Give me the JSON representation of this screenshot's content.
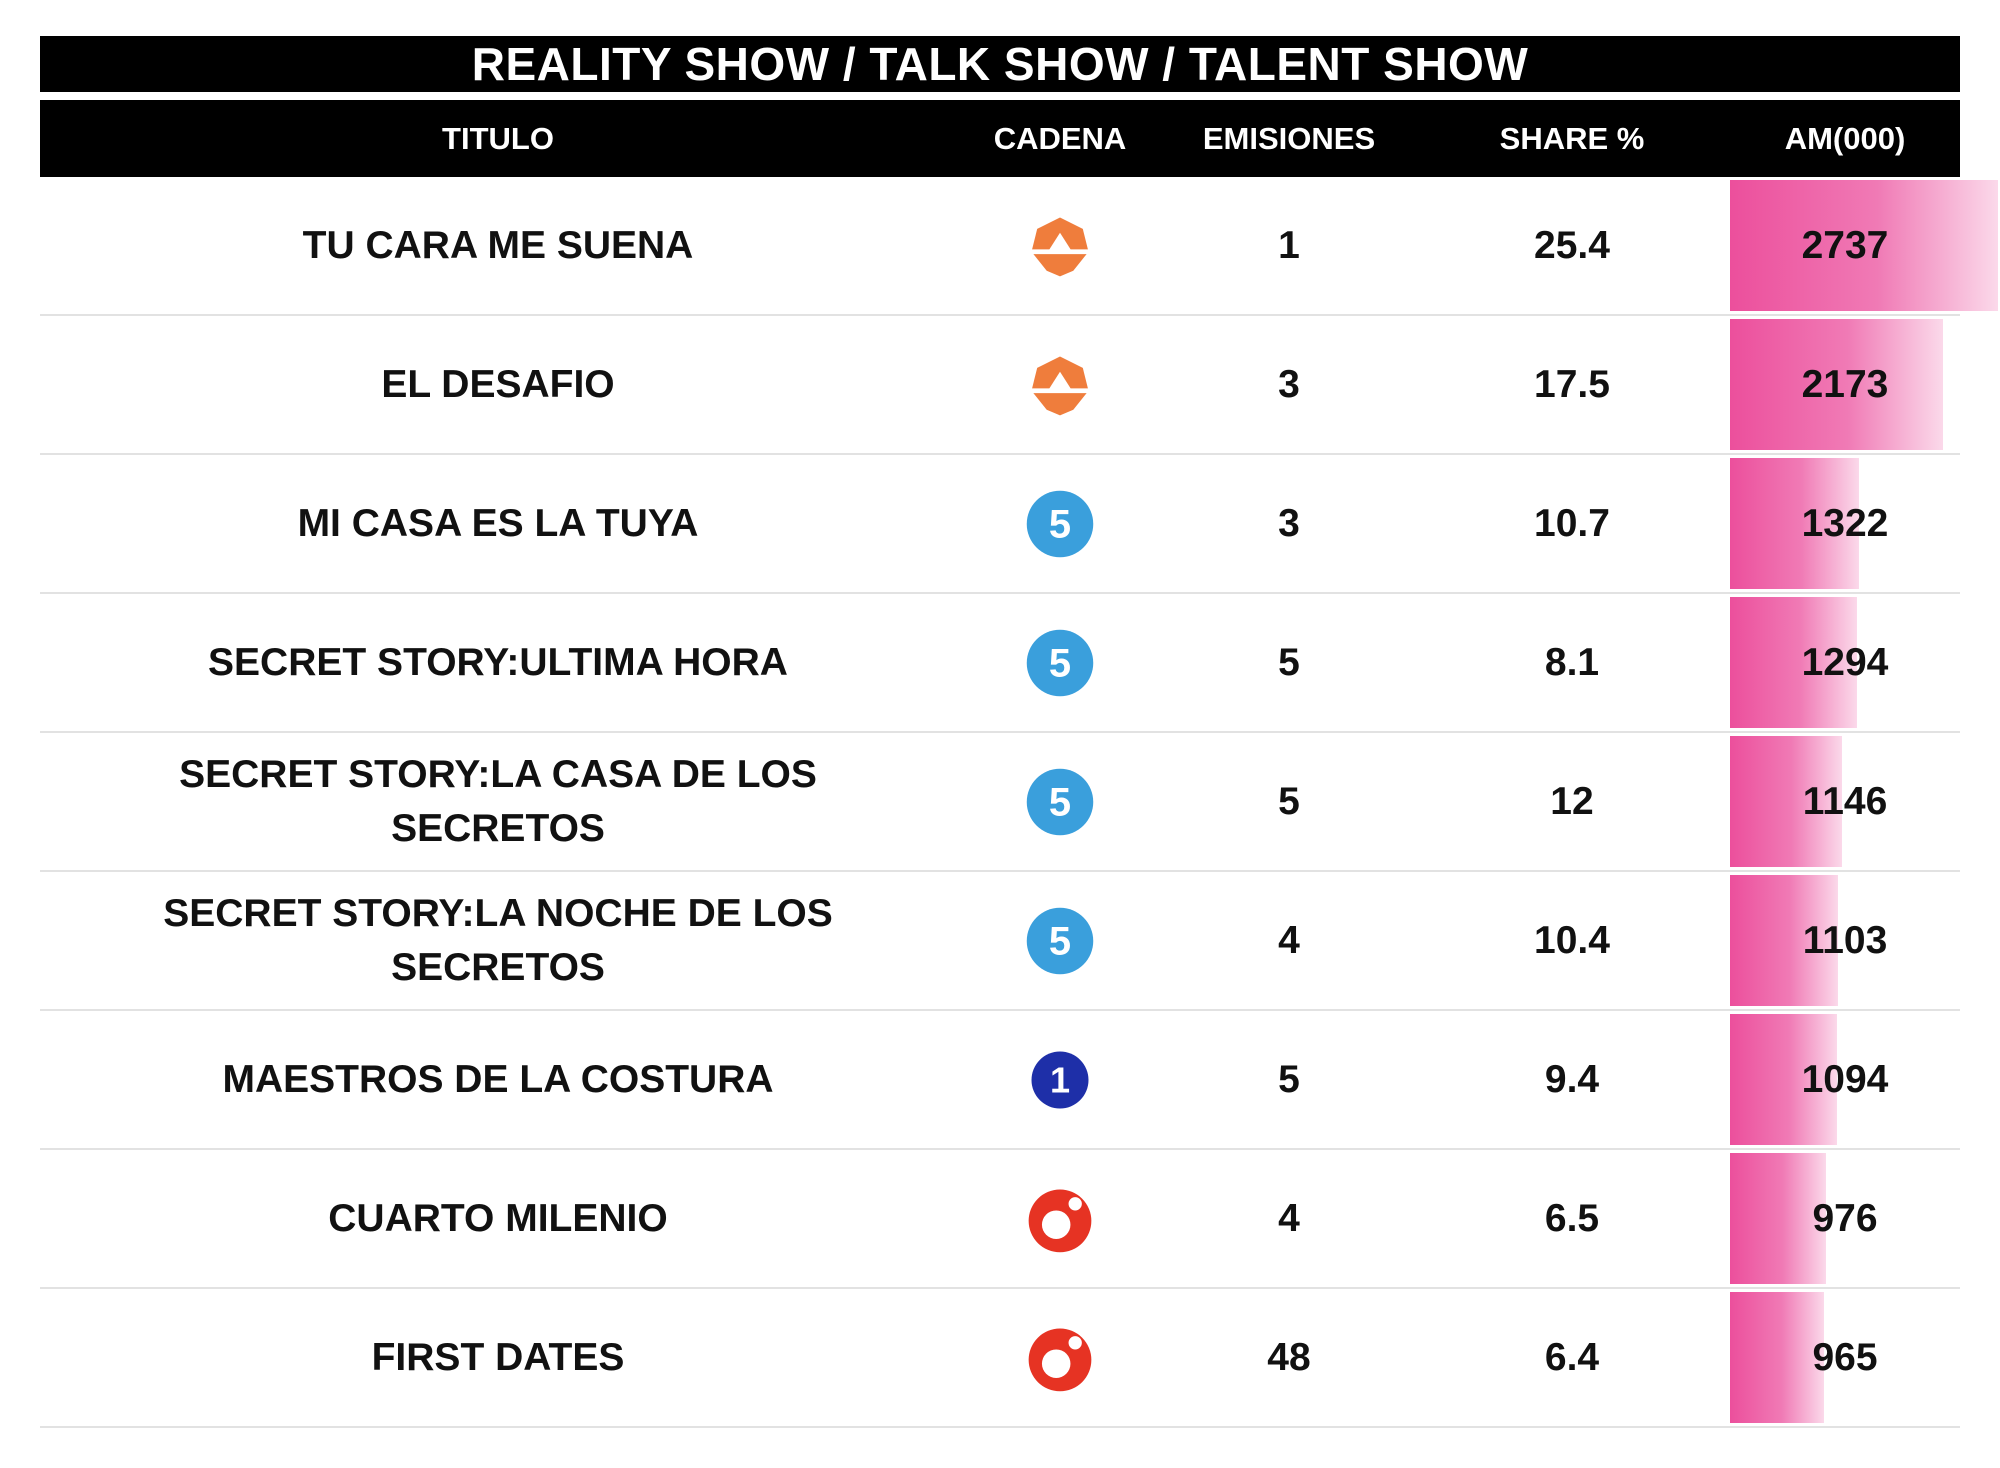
{
  "header": {
    "title": "REALITY SHOW / TALK SHOW / TALENT SHOW"
  },
  "columns": {
    "title": "TITULO",
    "channel": "CADENA",
    "emissions": "EMISIONES",
    "share": "SHARE %",
    "am": "AM(000)"
  },
  "colors": {
    "bar_start": "#ec4f9c",
    "bar_end": "#fbd9ea",
    "antena3": "#ef7d3c",
    "telecinco": "#3a9fdc",
    "la1": "#1e2fa8",
    "cuatro": "#e63323"
  },
  "am_max": 2737,
  "rows": [
    {
      "title": "TU CARA ME SUENA",
      "channel_icon": "antena3-logo-icon",
      "emissions": "1",
      "share": "25.4",
      "am": "2737",
      "am_value": 2737
    },
    {
      "title": "EL DESAFIO",
      "channel_icon": "antena3-logo-icon",
      "emissions": "3",
      "share": "17.5",
      "am": "2173",
      "am_value": 2173
    },
    {
      "title": "MI CASA ES LA TUYA",
      "channel_icon": "telecinco-logo-icon",
      "emissions": "3",
      "share": "10.7",
      "am": "1322",
      "am_value": 1322
    },
    {
      "title": "SECRET STORY:ULTIMA HORA",
      "channel_icon": "telecinco-logo-icon",
      "emissions": "5",
      "share": "8.1",
      "am": "1294",
      "am_value": 1294
    },
    {
      "title": "SECRET STORY:LA CASA DE LOS SECRETOS",
      "channel_icon": "telecinco-logo-icon",
      "emissions": "5",
      "share": "12",
      "am": "1146",
      "am_value": 1146
    },
    {
      "title": "SECRET STORY:LA NOCHE DE LOS SECRETOS",
      "channel_icon": "telecinco-logo-icon",
      "emissions": "4",
      "share": "10.4",
      "am": "1103",
      "am_value": 1103
    },
    {
      "title": "MAESTROS DE LA COSTURA",
      "channel_icon": "la1-logo-icon",
      "emissions": "5",
      "share": "9.4",
      "am": "1094",
      "am_value": 1094
    },
    {
      "title": "CUARTO MILENIO",
      "channel_icon": "cuatro-logo-icon",
      "emissions": "4",
      "share": "6.5",
      "am": "976",
      "am_value": 976
    },
    {
      "title": "FIRST DATES",
      "channel_icon": "cuatro-logo-icon",
      "emissions": "48",
      "share": "6.4",
      "am": "965",
      "am_value": 965
    }
  ],
  "chart_data": {
    "type": "table",
    "title": "REALITY SHOW / TALK SHOW / TALENT SHOW",
    "columns": [
      "TITULO",
      "CADENA",
      "EMISIONES",
      "SHARE %",
      "AM(000)"
    ],
    "rows": [
      [
        "TU CARA ME SUENA",
        "Antena 3",
        1,
        25.4,
        2737
      ],
      [
        "EL DESAFIO",
        "Antena 3",
        3,
        17.5,
        2173
      ],
      [
        "MI CASA ES LA TUYA",
        "Telecinco",
        3,
        10.7,
        1322
      ],
      [
        "SECRET STORY:ULTIMA HORA",
        "Telecinco",
        5,
        8.1,
        1294
      ],
      [
        "SECRET STORY:LA CASA DE LOS SECRETOS",
        "Telecinco",
        5,
        12,
        1146
      ],
      [
        "SECRET STORY:LA NOCHE DE LOS SECRETOS",
        "Telecinco",
        4,
        10.4,
        1103
      ],
      [
        "MAESTROS DE LA COSTURA",
        "La 1",
        5,
        9.4,
        1094
      ],
      [
        "CUARTO MILENIO",
        "Cuatro",
        4,
        6.5,
        976
      ],
      [
        "FIRST DATES",
        "Cuatro",
        48,
        6.4,
        965
      ]
    ]
  }
}
